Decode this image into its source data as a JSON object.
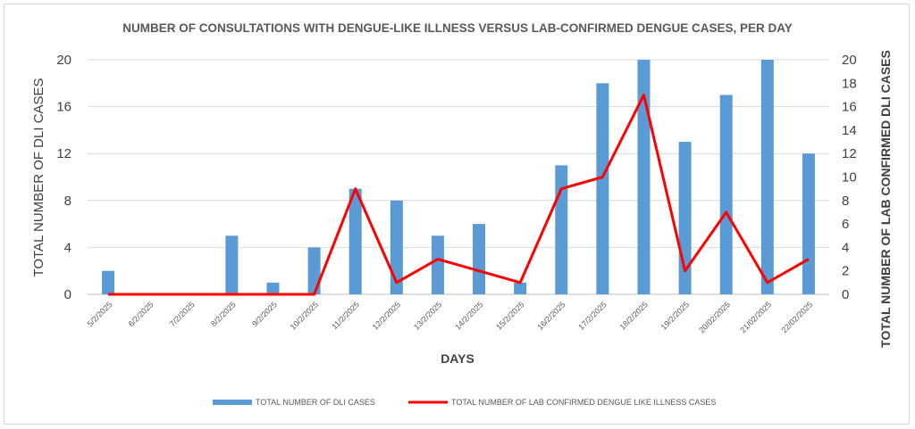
{
  "chart_data": {
    "type": "bar",
    "title": "NUMBER OF CONSULTATIONS WITH DENGUE-LIKE ILLNESS VERSUS  LAB-CONFIRMED DENGUE CASES, PER DAY",
    "xlabel": "DAYS",
    "ylabel": "TOTAL NUMBER OF DLI CASES",
    "ylabel_right": "TOTAL NUMBER OF LAB CONFIRMED DLI CASES",
    "categories": [
      "5/2/2025",
      "6/2/2025",
      "7/2/2025",
      "8/2/2025",
      "9/2/2025",
      "10/2/2025",
      "11/2/2025",
      "12/2/2025",
      "13/2/2025",
      "14/2/2025",
      "15/2/2025",
      "16/2/2025",
      "17/2/2025",
      "18/2/2025",
      "19/2/2025",
      "20/02/2025",
      "21/02/2025",
      "22/02/2025"
    ],
    "ylim": [
      0,
      20
    ],
    "ylim_right": [
      0,
      20
    ],
    "yticks": [
      0,
      4,
      8,
      12,
      16,
      20
    ],
    "yticks_right": [
      0,
      2,
      4,
      6,
      8,
      10,
      12,
      14,
      16,
      18,
      20
    ],
    "grid": true,
    "legend_position": "bottom",
    "series": [
      {
        "name": "TOTAL NUMBER OF DLI CASES",
        "type": "bar",
        "axis": "left",
        "color": "#5b9bd5",
        "values": [
          2,
          0,
          0,
          5,
          1,
          4,
          9,
          8,
          5,
          6,
          1,
          11,
          18,
          20,
          13,
          17,
          20,
          12
        ]
      },
      {
        "name": "TOTAL NUMBER OF LAB CONFIRMED DENGUE LIKE ILLNESS CASES",
        "type": "line",
        "axis": "right",
        "color": "#ff0000",
        "values": [
          0,
          0,
          0,
          0,
          0,
          0,
          9,
          1,
          3,
          2,
          1,
          9,
          10,
          17,
          2,
          7,
          1,
          3
        ]
      }
    ]
  }
}
